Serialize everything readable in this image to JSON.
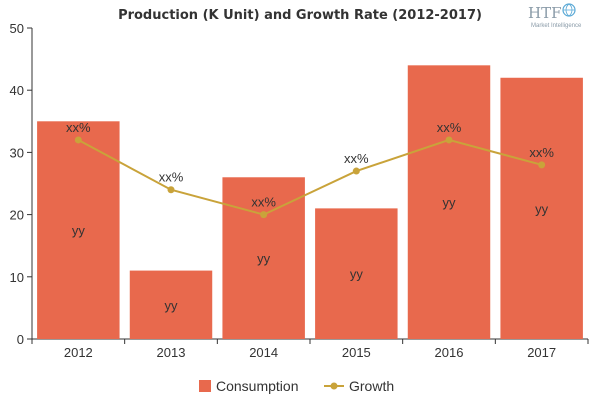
{
  "chart_data": {
    "type": "bar",
    "title": "Production (K Unit) and Growth Rate (2012-2017)",
    "categories": [
      "2012",
      "2013",
      "2014",
      "2015",
      "2016",
      "2017"
    ],
    "series": [
      {
        "name": "Consumption",
        "type": "bar",
        "color": "#e8694d",
        "values": [
          35,
          11,
          26,
          21,
          44,
          42
        ],
        "labels": [
          "yy",
          "yy",
          "yy",
          "yy",
          "yy",
          "yy"
        ]
      },
      {
        "name": "Growth",
        "type": "line",
        "color": "#c9a33a",
        "values": [
          32,
          24,
          20,
          27,
          32,
          28
        ],
        "labels": [
          "xx%",
          "xx%",
          "xx%",
          "xx%",
          "xx%",
          "xx%"
        ]
      }
    ],
    "y_ticks": [
      "0",
      "10",
      "20",
      "30",
      "40",
      "50"
    ],
    "ylim": [
      0,
      50
    ],
    "grid": false,
    "legend_position": "bottom"
  },
  "logo": {
    "text": "HTF",
    "subtext": "Market Intelligence"
  }
}
